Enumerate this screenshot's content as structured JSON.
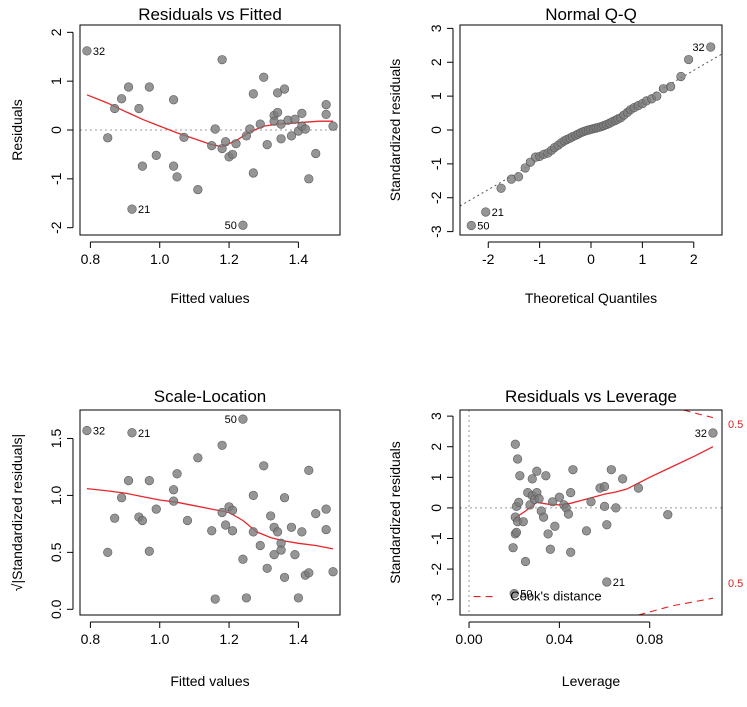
{
  "chart_data": [
    {
      "type": "scatter",
      "title": "Residuals vs Fitted",
      "xlabel": "Fitted values",
      "ylabel": "Residuals",
      "xlim": [
        0.77,
        1.52
      ],
      "ylim": [
        -2.15,
        2.15
      ],
      "xticks": [
        {
          "v": 0.8,
          "label": "0.8"
        },
        {
          "v": 1.0,
          "label": "1.0"
        },
        {
          "v": 1.2,
          "label": "1.2"
        },
        {
          "v": 1.4,
          "label": "1.4"
        }
      ],
      "yticks": [
        {
          "v": -2,
          "label": "-2"
        },
        {
          "v": -1,
          "label": "-1"
        },
        {
          "v": 0,
          "label": "0"
        },
        {
          "v": 1,
          "label": "1"
        },
        {
          "v": 2,
          "label": "2"
        }
      ],
      "refline": {
        "y": 0
      },
      "points": [
        [
          0.79,
          1.62
        ],
        [
          0.85,
          -0.16
        ],
        [
          0.87,
          0.44
        ],
        [
          0.89,
          0.64
        ],
        [
          0.91,
          0.88
        ],
        [
          0.92,
          -1.62
        ],
        [
          0.94,
          0.44
        ],
        [
          0.95,
          -0.74
        ],
        [
          0.97,
          0.88
        ],
        [
          0.99,
          -0.52
        ],
        [
          1.04,
          -0.74
        ],
        [
          1.04,
          0.62
        ],
        [
          1.05,
          -0.96
        ],
        [
          1.07,
          -0.15
        ],
        [
          1.11,
          -1.22
        ],
        [
          1.15,
          -0.32
        ],
        [
          1.16,
          0.02
        ],
        [
          1.18,
          1.44
        ],
        [
          1.18,
          -0.38
        ],
        [
          1.19,
          -0.24
        ],
        [
          1.2,
          -0.55
        ],
        [
          1.21,
          -0.5
        ],
        [
          1.22,
          -0.28
        ],
        [
          1.24,
          -1.95
        ],
        [
          1.25,
          -0.12
        ],
        [
          1.26,
          0.02
        ],
        [
          1.27,
          -0.88
        ],
        [
          1.27,
          0.74
        ],
        [
          1.29,
          0.12
        ],
        [
          1.3,
          1.08
        ],
        [
          1.31,
          -0.3
        ],
        [
          1.33,
          0.3
        ],
        [
          1.33,
          0.18
        ],
        [
          1.34,
          0.76
        ],
        [
          1.34,
          0.36
        ],
        [
          1.35,
          0.12
        ],
        [
          1.35,
          -0.18
        ],
        [
          1.36,
          0.84
        ],
        [
          1.37,
          0.2
        ],
        [
          1.38,
          -0.12
        ],
        [
          1.39,
          0.22
        ],
        [
          1.4,
          -0.02
        ],
        [
          1.41,
          0.34
        ],
        [
          1.41,
          0.08
        ],
        [
          1.42,
          0.02
        ],
        [
          1.43,
          -1.0
        ],
        [
          1.45,
          -0.48
        ],
        [
          1.48,
          0.52
        ],
        [
          1.48,
          0.32
        ],
        [
          1.5,
          0.08
        ]
      ],
      "labels": [
        {
          "text": "32",
          "x": 0.79,
          "y": 1.62,
          "side": "right"
        },
        {
          "text": "21",
          "x": 0.92,
          "y": -1.62,
          "side": "right"
        },
        {
          "text": "50",
          "x": 1.24,
          "y": -1.95,
          "side": "left"
        }
      ],
      "smooth": [
        [
          0.79,
          0.72
        ],
        [
          0.85,
          0.55
        ],
        [
          0.9,
          0.38
        ],
        [
          0.95,
          0.22
        ],
        [
          1.0,
          0.08
        ],
        [
          1.05,
          -0.06
        ],
        [
          1.1,
          -0.18
        ],
        [
          1.15,
          -0.3
        ],
        [
          1.18,
          -0.34
        ],
        [
          1.22,
          -0.22
        ],
        [
          1.26,
          -0.04
        ],
        [
          1.3,
          0.08
        ],
        [
          1.34,
          0.12
        ],
        [
          1.38,
          0.14
        ],
        [
          1.42,
          0.16
        ],
        [
          1.46,
          0.18
        ],
        [
          1.5,
          0.18
        ]
      ]
    },
    {
      "type": "scatter",
      "title": "Normal Q-Q",
      "xlabel": "Theoretical Quantiles",
      "ylabel": "Standardized residuals",
      "xlim": [
        -2.55,
        2.55
      ],
      "ylim": [
        -3.1,
        3.1
      ],
      "xticks": [
        {
          "v": -2,
          "label": "-2"
        },
        {
          "v": -1,
          "label": "-1"
        },
        {
          "v": 0,
          "label": "0"
        },
        {
          "v": 1,
          "label": "1"
        },
        {
          "v": 2,
          "label": "2"
        }
      ],
      "yticks": [
        {
          "v": -3,
          "label": "-3"
        },
        {
          "v": -2,
          "label": "-2"
        },
        {
          "v": -1,
          "label": "-1"
        },
        {
          "v": 0,
          "label": "0"
        },
        {
          "v": 1,
          "label": "1"
        },
        {
          "v": 2,
          "label": "2"
        },
        {
          "v": 3,
          "label": "3"
        }
      ],
      "refline": {
        "slope": 0.88,
        "intercept": 0.0
      },
      "points": [
        [
          -2.33,
          -2.82
        ],
        [
          -2.05,
          -2.42
        ],
        [
          -1.75,
          -1.72
        ],
        [
          -1.55,
          -1.45
        ],
        [
          -1.41,
          -1.38
        ],
        [
          -1.28,
          -1.12
        ],
        [
          -1.18,
          -0.95
        ],
        [
          -1.08,
          -0.8
        ],
        [
          -1.0,
          -0.78
        ],
        [
          -0.92,
          -0.72
        ],
        [
          -0.84,
          -0.68
        ],
        [
          -0.77,
          -0.6
        ],
        [
          -0.71,
          -0.52
        ],
        [
          -0.64,
          -0.45
        ],
        [
          -0.58,
          -0.38
        ],
        [
          -0.52,
          -0.32
        ],
        [
          -0.47,
          -0.28
        ],
        [
          -0.41,
          -0.24
        ],
        [
          -0.36,
          -0.2
        ],
        [
          -0.3,
          -0.16
        ],
        [
          -0.25,
          -0.12
        ],
        [
          -0.2,
          -0.08
        ],
        [
          -0.15,
          -0.05
        ],
        [
          -0.1,
          -0.02
        ],
        [
          -0.05,
          0.0
        ],
        [
          0.0,
          0.02
        ],
        [
          0.05,
          0.04
        ],
        [
          0.1,
          0.06
        ],
        [
          0.15,
          0.08
        ],
        [
          0.2,
          0.1
        ],
        [
          0.25,
          0.13
        ],
        [
          0.3,
          0.16
        ],
        [
          0.36,
          0.2
        ],
        [
          0.41,
          0.24
        ],
        [
          0.47,
          0.28
        ],
        [
          0.52,
          0.32
        ],
        [
          0.58,
          0.36
        ],
        [
          0.64,
          0.44
        ],
        [
          0.71,
          0.52
        ],
        [
          0.77,
          0.6
        ],
        [
          0.84,
          0.66
        ],
        [
          0.92,
          0.72
        ],
        [
          1.0,
          0.78
        ],
        [
          1.08,
          0.86
        ],
        [
          1.18,
          0.92
        ],
        [
          1.28,
          1.0
        ],
        [
          1.41,
          1.22
        ],
        [
          1.55,
          1.28
        ],
        [
          1.75,
          1.58
        ],
        [
          1.9,
          2.08
        ],
        [
          2.33,
          2.45
        ]
      ],
      "labels": [
        {
          "text": "32",
          "x": 2.33,
          "y": 2.45,
          "side": "left"
        },
        {
          "text": "21",
          "x": -2.05,
          "y": -2.42,
          "side": "right"
        },
        {
          "text": "50",
          "x": -2.33,
          "y": -2.82,
          "side": "right"
        }
      ]
    },
    {
      "type": "scatter",
      "title": "Scale-Location",
      "xlabel": "Fitted values",
      "ylabel": "√|Standardized residuals|",
      "xlim": [
        0.77,
        1.52
      ],
      "ylim": [
        -0.05,
        1.75
      ],
      "xticks": [
        {
          "v": 0.8,
          "label": "0.8"
        },
        {
          "v": 1.0,
          "label": "1.0"
        },
        {
          "v": 1.2,
          "label": "1.2"
        },
        {
          "v": 1.4,
          "label": "1.4"
        }
      ],
      "yticks": [
        {
          "v": 0.0,
          "label": "0.0"
        },
        {
          "v": 0.5,
          "label": "0.5"
        },
        {
          "v": 1.0,
          "label": "1.0"
        },
        {
          "v": 1.5,
          "label": "1.5"
        }
      ],
      "points": [
        [
          0.79,
          1.57
        ],
        [
          0.85,
          0.5
        ],
        [
          0.87,
          0.8
        ],
        [
          0.89,
          0.98
        ],
        [
          0.91,
          1.13
        ],
        [
          0.92,
          1.55
        ],
        [
          0.94,
          0.81
        ],
        [
          0.95,
          0.78
        ],
        [
          0.97,
          1.13
        ],
        [
          0.97,
          0.51
        ],
        [
          0.99,
          0.88
        ],
        [
          1.04,
          1.05
        ],
        [
          1.04,
          0.95
        ],
        [
          1.05,
          1.19
        ],
        [
          1.08,
          0.78
        ],
        [
          1.11,
          1.33
        ],
        [
          1.15,
          0.69
        ],
        [
          1.16,
          0.09
        ],
        [
          1.18,
          1.44
        ],
        [
          1.18,
          0.85
        ],
        [
          1.19,
          0.74
        ],
        [
          1.2,
          0.9
        ],
        [
          1.21,
          0.87
        ],
        [
          1.21,
          0.69
        ],
        [
          1.24,
          1.67
        ],
        [
          1.24,
          0.44
        ],
        [
          1.25,
          0.1
        ],
        [
          1.27,
          0.68
        ],
        [
          1.27,
          1.0
        ],
        [
          1.29,
          0.56
        ],
        [
          1.3,
          1.26
        ],
        [
          1.31,
          0.36
        ],
        [
          1.32,
          0.82
        ],
        [
          1.33,
          0.48
        ],
        [
          1.33,
          0.72
        ],
        [
          1.34,
          0.68
        ],
        [
          1.35,
          0.58
        ],
        [
          1.35,
          0.52
        ],
        [
          1.36,
          0.28
        ],
        [
          1.36,
          0.98
        ],
        [
          1.38,
          0.72
        ],
        [
          1.39,
          0.48
        ],
        [
          1.4,
          0.1
        ],
        [
          1.41,
          0.68
        ],
        [
          1.42,
          0.3
        ],
        [
          1.43,
          0.32
        ],
        [
          1.43,
          1.22
        ],
        [
          1.45,
          0.84
        ],
        [
          1.48,
          0.7
        ],
        [
          1.48,
          0.88
        ],
        [
          1.5,
          0.33
        ]
      ],
      "labels": [
        {
          "text": "32",
          "x": 0.79,
          "y": 1.57,
          "side": "right"
        },
        {
          "text": "21",
          "x": 0.92,
          "y": 1.55,
          "side": "right"
        },
        {
          "text": "50",
          "x": 1.24,
          "y": 1.67,
          "side": "left"
        }
      ],
      "smooth": [
        [
          0.79,
          1.06
        ],
        [
          0.85,
          1.04
        ],
        [
          0.9,
          1.02
        ],
        [
          0.95,
          0.99
        ],
        [
          1.0,
          0.96
        ],
        [
          1.05,
          0.94
        ],
        [
          1.1,
          0.91
        ],
        [
          1.15,
          0.88
        ],
        [
          1.2,
          0.85
        ],
        [
          1.24,
          0.78
        ],
        [
          1.28,
          0.68
        ],
        [
          1.32,
          0.63
        ],
        [
          1.36,
          0.6
        ],
        [
          1.4,
          0.58
        ],
        [
          1.45,
          0.56
        ],
        [
          1.5,
          0.53
        ]
      ]
    },
    {
      "type": "scatter",
      "title": "Residuals vs Leverage",
      "xlabel": "Leverage",
      "ylabel": "Standardized residuals",
      "xlim": [
        -0.004,
        0.112
      ],
      "ylim": [
        -3.5,
        3.2
      ],
      "xticks": [
        {
          "v": 0.0,
          "label": "0.00"
        },
        {
          "v": 0.04,
          "label": "0.04"
        },
        {
          "v": 0.08,
          "label": "0.08"
        }
      ],
      "yticks": [
        {
          "v": -3,
          "label": "-3"
        },
        {
          "v": -2,
          "label": "-2"
        },
        {
          "v": -1,
          "label": "-1"
        },
        {
          "v": 0,
          "label": "0"
        },
        {
          "v": 1,
          "label": "1"
        },
        {
          "v": 2,
          "label": "2"
        },
        {
          "v": 3,
          "label": "3"
        }
      ],
      "refline": {
        "x": 0,
        "y": 0
      },
      "points": [
        [
          0.02,
          -2.8
        ],
        [
          0.0205,
          -0.85
        ],
        [
          0.021,
          -0.8
        ],
        [
          0.0195,
          -1.3
        ],
        [
          0.0205,
          -0.3
        ],
        [
          0.021,
          0.05
        ],
        [
          0.0215,
          -0.45
        ],
        [
          0.022,
          0.18
        ],
        [
          0.0225,
          1.05
        ],
        [
          0.0205,
          2.08
        ],
        [
          0.0215,
          1.6
        ],
        [
          0.024,
          -0.45
        ],
        [
          0.025,
          -1.75
        ],
        [
          0.026,
          0.5
        ],
        [
          0.027,
          0.1
        ],
        [
          0.028,
          0.95
        ],
        [
          0.028,
          0.4
        ],
        [
          0.029,
          0.28
        ],
        [
          0.03,
          0.5
        ],
        [
          0.03,
          1.2
        ],
        [
          0.031,
          0.3
        ],
        [
          0.032,
          -0.1
        ],
        [
          0.033,
          -0.3
        ],
        [
          0.034,
          1.05
        ],
        [
          0.035,
          -0.85
        ],
        [
          0.036,
          -1.35
        ],
        [
          0.037,
          0.2
        ],
        [
          0.038,
          -0.6
        ],
        [
          0.04,
          0.35
        ],
        [
          0.042,
          0.1
        ],
        [
          0.043,
          0.0
        ],
        [
          0.044,
          -0.2
        ],
        [
          0.045,
          -1.45
        ],
        [
          0.045,
          0.5
        ],
        [
          0.046,
          1.25
        ],
        [
          0.052,
          -0.75
        ],
        [
          0.054,
          0.2
        ],
        [
          0.058,
          0.65
        ],
        [
          0.06,
          0.7
        ],
        [
          0.06,
          0.05
        ],
        [
          0.061,
          -0.55
        ],
        [
          0.063,
          1.25
        ],
        [
          0.065,
          0.0
        ],
        [
          0.068,
          0.95
        ],
        [
          0.075,
          0.65
        ],
        [
          0.088,
          -0.22
        ],
        [
          0.061,
          -2.42
        ],
        [
          0.108,
          2.45
        ]
      ],
      "labels": [
        {
          "text": "32",
          "x": 0.108,
          "y": 2.45,
          "side": "left"
        },
        {
          "text": "21",
          "x": 0.061,
          "y": -2.42,
          "side": "right"
        },
        {
          "text": "50",
          "x": 0.02,
          "y": -2.8,
          "side": "right"
        }
      ],
      "smooth": [
        [
          0.02,
          -0.35
        ],
        [
          0.025,
          -0.1
        ],
        [
          0.03,
          0.18
        ],
        [
          0.035,
          0.12
        ],
        [
          0.04,
          0.1
        ],
        [
          0.045,
          0.15
        ],
        [
          0.05,
          0.25
        ],
        [
          0.055,
          0.35
        ],
        [
          0.06,
          0.45
        ],
        [
          0.065,
          0.52
        ],
        [
          0.07,
          0.62
        ],
        [
          0.08,
          1.0
        ],
        [
          0.09,
          1.35
        ],
        [
          0.1,
          1.7
        ],
        [
          0.108,
          2.0
        ]
      ],
      "cooks": {
        "label": "Cook's distance",
        "contour_label": "0.5",
        "upper": [
          [
            0.095,
            3.2
          ],
          [
            0.1,
            3.1
          ],
          [
            0.108,
            2.95
          ]
        ],
        "lower": [
          [
            0.002,
            -2.9
          ],
          [
            0.011,
            -2.9
          ]
        ],
        "lower_right": [
          [
            0.075,
            -3.5
          ],
          [
            0.09,
            -3.2
          ],
          [
            0.108,
            -2.95
          ]
        ]
      }
    }
  ]
}
